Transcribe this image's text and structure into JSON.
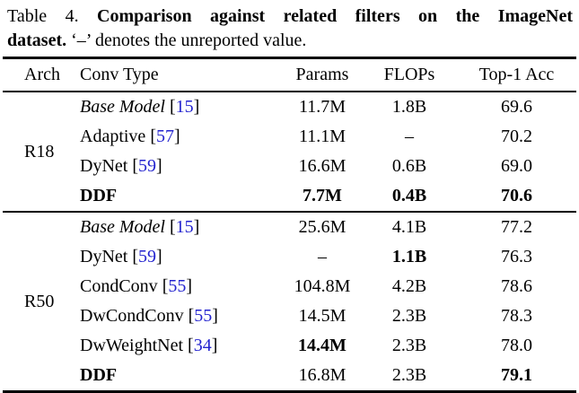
{
  "caption": {
    "label": "Table 4.",
    "title_bold_line1": "Comparison against related filters on the ImageNet",
    "title_bold_line2": "dataset.",
    "note": "‘–’ denotes the unreported value."
  },
  "colors": {
    "citation": "#2323cf",
    "text": "#000000",
    "rule": "#000000"
  },
  "table": {
    "headers": [
      "Arch",
      "Conv Type",
      "Params",
      "FLOPs",
      "Top-1 Acc"
    ],
    "groups": [
      {
        "arch": "R18",
        "rows": [
          {
            "conv": "Base Model",
            "italic": true,
            "cite": "15",
            "params": "11.7M",
            "flops": "1.8B",
            "acc": "69.6",
            "bold": []
          },
          {
            "conv": "Adaptive",
            "italic": false,
            "cite": "57",
            "params": "11.1M",
            "flops": "–",
            "acc": "70.2",
            "bold": []
          },
          {
            "conv": "DyNet",
            "italic": false,
            "cite": "59",
            "params": "16.6M",
            "flops": "0.6B",
            "acc": "69.0",
            "bold": []
          },
          {
            "conv": "DDF",
            "italic": false,
            "cite": null,
            "params": "7.7M",
            "flops": "0.4B",
            "acc": "70.6",
            "bold": [
              "conv",
              "params",
              "flops",
              "acc"
            ]
          }
        ]
      },
      {
        "arch": "R50",
        "rows": [
          {
            "conv": "Base Model",
            "italic": true,
            "cite": "15",
            "params": "25.6M",
            "flops": "4.1B",
            "acc": "77.2",
            "bold": []
          },
          {
            "conv": "DyNet",
            "italic": false,
            "cite": "59",
            "params": "–",
            "flops": "1.1B",
            "acc": "76.3",
            "bold": [
              "flops"
            ]
          },
          {
            "conv": "CondConv",
            "italic": false,
            "cite": "55",
            "params": "104.8M",
            "flops": "4.2B",
            "acc": "78.6",
            "bold": []
          },
          {
            "conv": "DwCondConv",
            "italic": false,
            "cite": "55",
            "params": "14.5M",
            "flops": "2.3B",
            "acc": "78.3",
            "bold": []
          },
          {
            "conv": "DwWeightNet",
            "italic": false,
            "cite": "34",
            "params": "14.4M",
            "flops": "2.3B",
            "acc": "78.0",
            "bold": [
              "params"
            ]
          },
          {
            "conv": "DDF",
            "italic": false,
            "cite": null,
            "params": "16.8M",
            "flops": "2.3B",
            "acc": "79.1",
            "bold": [
              "conv",
              "acc"
            ]
          }
        ]
      }
    ]
  }
}
